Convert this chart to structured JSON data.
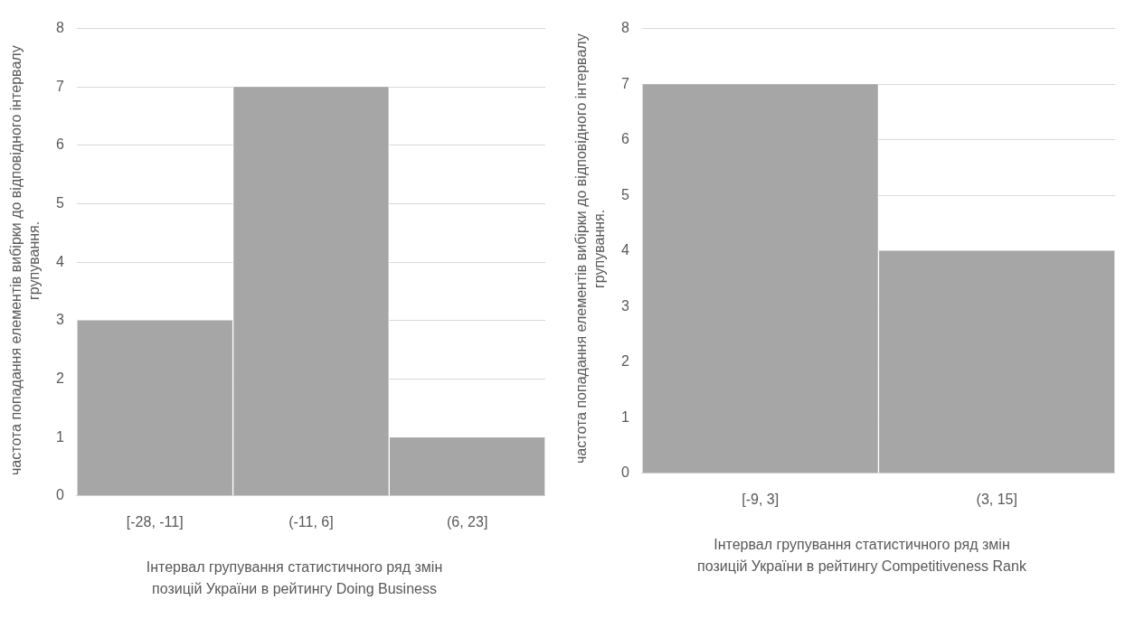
{
  "chart_data": [
    {
      "type": "bar",
      "xlabel": "Інтервал групування статистичного ряд змін позицій України в рейтингу Doing Business",
      "ylabel": "частота попадання елементів вибірки до відповідного інтервалу групування.",
      "categories": [
        "[-28, -11]",
        "(-11, 6]",
        "(6, 23]"
      ],
      "values": [
        3,
        7,
        1
      ],
      "color": "#a6a6a6",
      "ylim": [
        0,
        8
      ],
      "yticks": [
        0,
        1,
        2,
        3,
        4,
        5,
        6,
        7,
        8
      ],
      "grid": "y",
      "legend": false
    },
    {
      "type": "bar",
      "xlabel": "Інтервал групування статистичного ряд змін позицій України в рейтингу Competitiveness Rank",
      "ylabel": "частота попадання елементів вибірки до відповідного інтервалу групування.",
      "categories": [
        "[-9, 3]",
        "(3, 15]"
      ],
      "values": [
        7,
        4
      ],
      "color": "#a6a6a6",
      "ylim": [
        0,
        8
      ],
      "yticks": [
        0,
        1,
        2,
        3,
        4,
        5,
        6,
        7,
        8
      ],
      "grid": "y",
      "legend": false
    }
  ]
}
